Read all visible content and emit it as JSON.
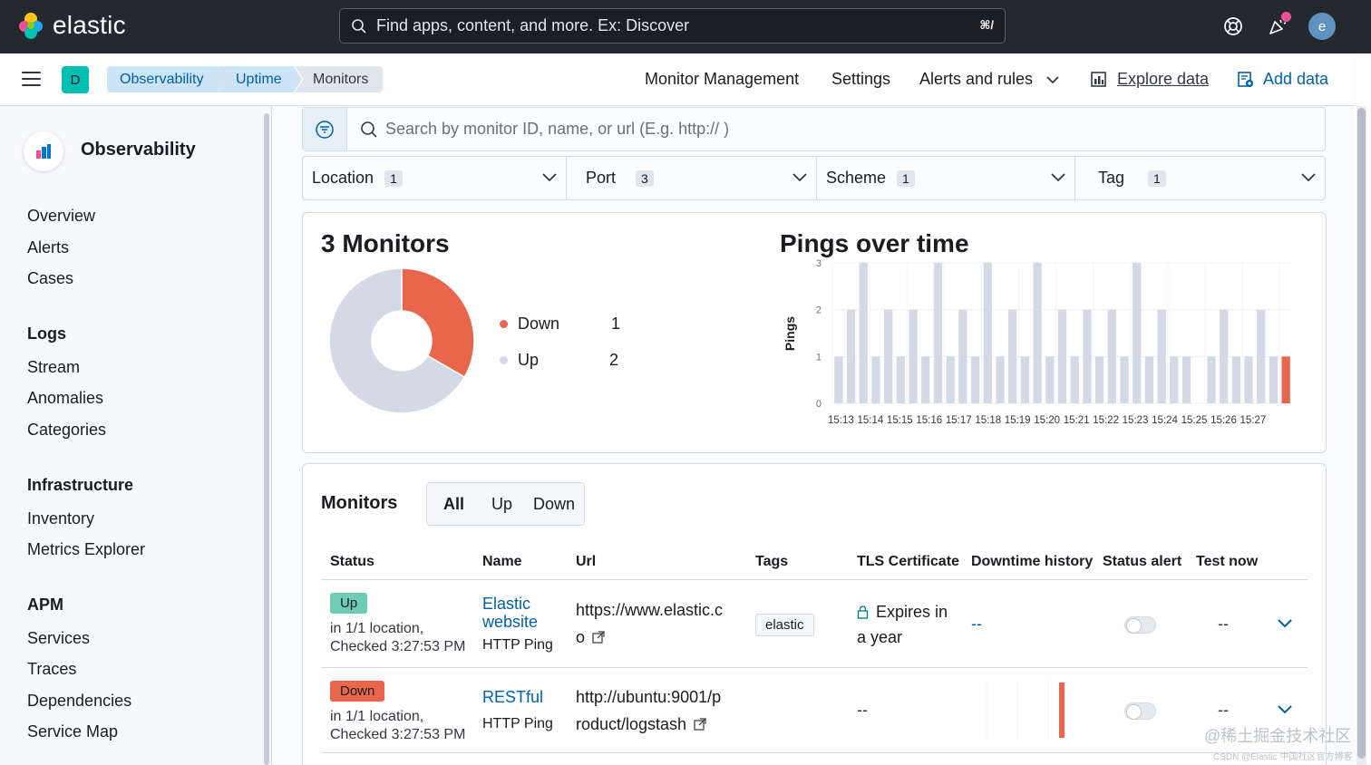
{
  "header": {
    "brand": "elastic",
    "search_placeholder": "Find apps, content, and more. Ex: Discover",
    "search_shortcut": "⌘/",
    "avatar_initial": "e"
  },
  "subheader": {
    "space_initial": "D",
    "breadcrumbs": [
      "Observability",
      "Uptime",
      "Monitors"
    ],
    "nav": {
      "monitor_management": "Monitor Management",
      "settings": "Settings",
      "alerts": "Alerts and rules",
      "explore": "Explore data",
      "add_data": "Add data"
    }
  },
  "sidebar": {
    "title": "Observability",
    "top_items": [
      "Overview",
      "Alerts",
      "Cases"
    ],
    "sections": [
      {
        "title": "Logs",
        "items": [
          "Stream",
          "Anomalies",
          "Categories"
        ]
      },
      {
        "title": "Infrastructure",
        "items": [
          "Inventory",
          "Metrics Explorer"
        ]
      },
      {
        "title": "APM",
        "items": [
          "Services",
          "Traces",
          "Dependencies",
          "Service Map"
        ]
      }
    ]
  },
  "search": {
    "placeholder": "Search by monitor ID, name, or url (E.g. http:// )"
  },
  "filters": [
    {
      "label": "Location",
      "count": "1"
    },
    {
      "label": "Port",
      "count": "3"
    },
    {
      "label": "Scheme",
      "count": "1"
    },
    {
      "label": "Tag",
      "count": "1"
    }
  ],
  "status_summary": {
    "title": "3 Monitors",
    "legend": [
      {
        "label": "Down",
        "value": "1",
        "color": "#e7664c"
      },
      {
        "label": "Up",
        "value": "2",
        "color": "#d3dae6"
      }
    ]
  },
  "chart_data": {
    "type": "bar",
    "title": "Pings over time",
    "ylabel": "Pings",
    "xlabel": "",
    "ylim": [
      0,
      3
    ],
    "y_ticks": [
      "0",
      "1",
      "2",
      "3"
    ],
    "x_tick_labels": [
      "15:13",
      "15:14",
      "15:15",
      "15:16",
      "15:17",
      "15:18",
      "15:19",
      "15:20",
      "15:21",
      "15:22",
      "15:23",
      "15:24",
      "15:25",
      "15:26",
      "15:27"
    ],
    "stacked": true,
    "series": [
      {
        "name": "Up",
        "color": "#d3dae6",
        "values": [
          1,
          2,
          3,
          1,
          2,
          1,
          2,
          1,
          3,
          1,
          2,
          1,
          3,
          1,
          2,
          1,
          3,
          1,
          2,
          1,
          2,
          1,
          2,
          1,
          3,
          1,
          2,
          1,
          1,
          0,
          1,
          2,
          1,
          1,
          2,
          1,
          0
        ]
      },
      {
        "name": "Down",
        "color": "#e7664c",
        "values": [
          0,
          0,
          0,
          0,
          0,
          0,
          0,
          0,
          0,
          0,
          0,
          0,
          0,
          0,
          0,
          0,
          0,
          0,
          0,
          0,
          0,
          0,
          0,
          0,
          0,
          0,
          0,
          0,
          0,
          0,
          0,
          0,
          0,
          0,
          0,
          0,
          1
        ]
      }
    ]
  },
  "monitors_table": {
    "title": "Monitors",
    "filter_tabs": [
      "All",
      "Up",
      "Down"
    ],
    "columns": [
      "Status",
      "Name",
      "Url",
      "Tags",
      "TLS Certificate",
      "Downtime history",
      "Status alert",
      "Test now"
    ],
    "rows": [
      {
        "status": "Up",
        "status_color": "#6dccb1",
        "location": "in 1/1 location,",
        "checked": "Checked 3:27:53 PM",
        "name_line1": "Elastic",
        "name_line2": "website",
        "type": "HTTP Ping",
        "url_line1": "https://www.elastic.c",
        "url_line2": "o",
        "tag": "elastic",
        "tls_line1": "Expires in",
        "tls_line2": "a year",
        "downtime": "--",
        "test_now": "--"
      },
      {
        "status": "Down",
        "status_color": "#e7664c",
        "location": "in 1/1 location,",
        "checked": "Checked 3:27:53 PM",
        "name_line1": "RESTful",
        "type": "HTTP Ping",
        "url_line1": "http://ubuntu:9001/p",
        "url_line2": "roduct/logstash",
        "tls": "--",
        "test_now": "--"
      }
    ]
  },
  "watermark": {
    "line1": "@稀土掘金技术社区",
    "line2": "CSDN @Elastic 中国社区官方博客"
  }
}
